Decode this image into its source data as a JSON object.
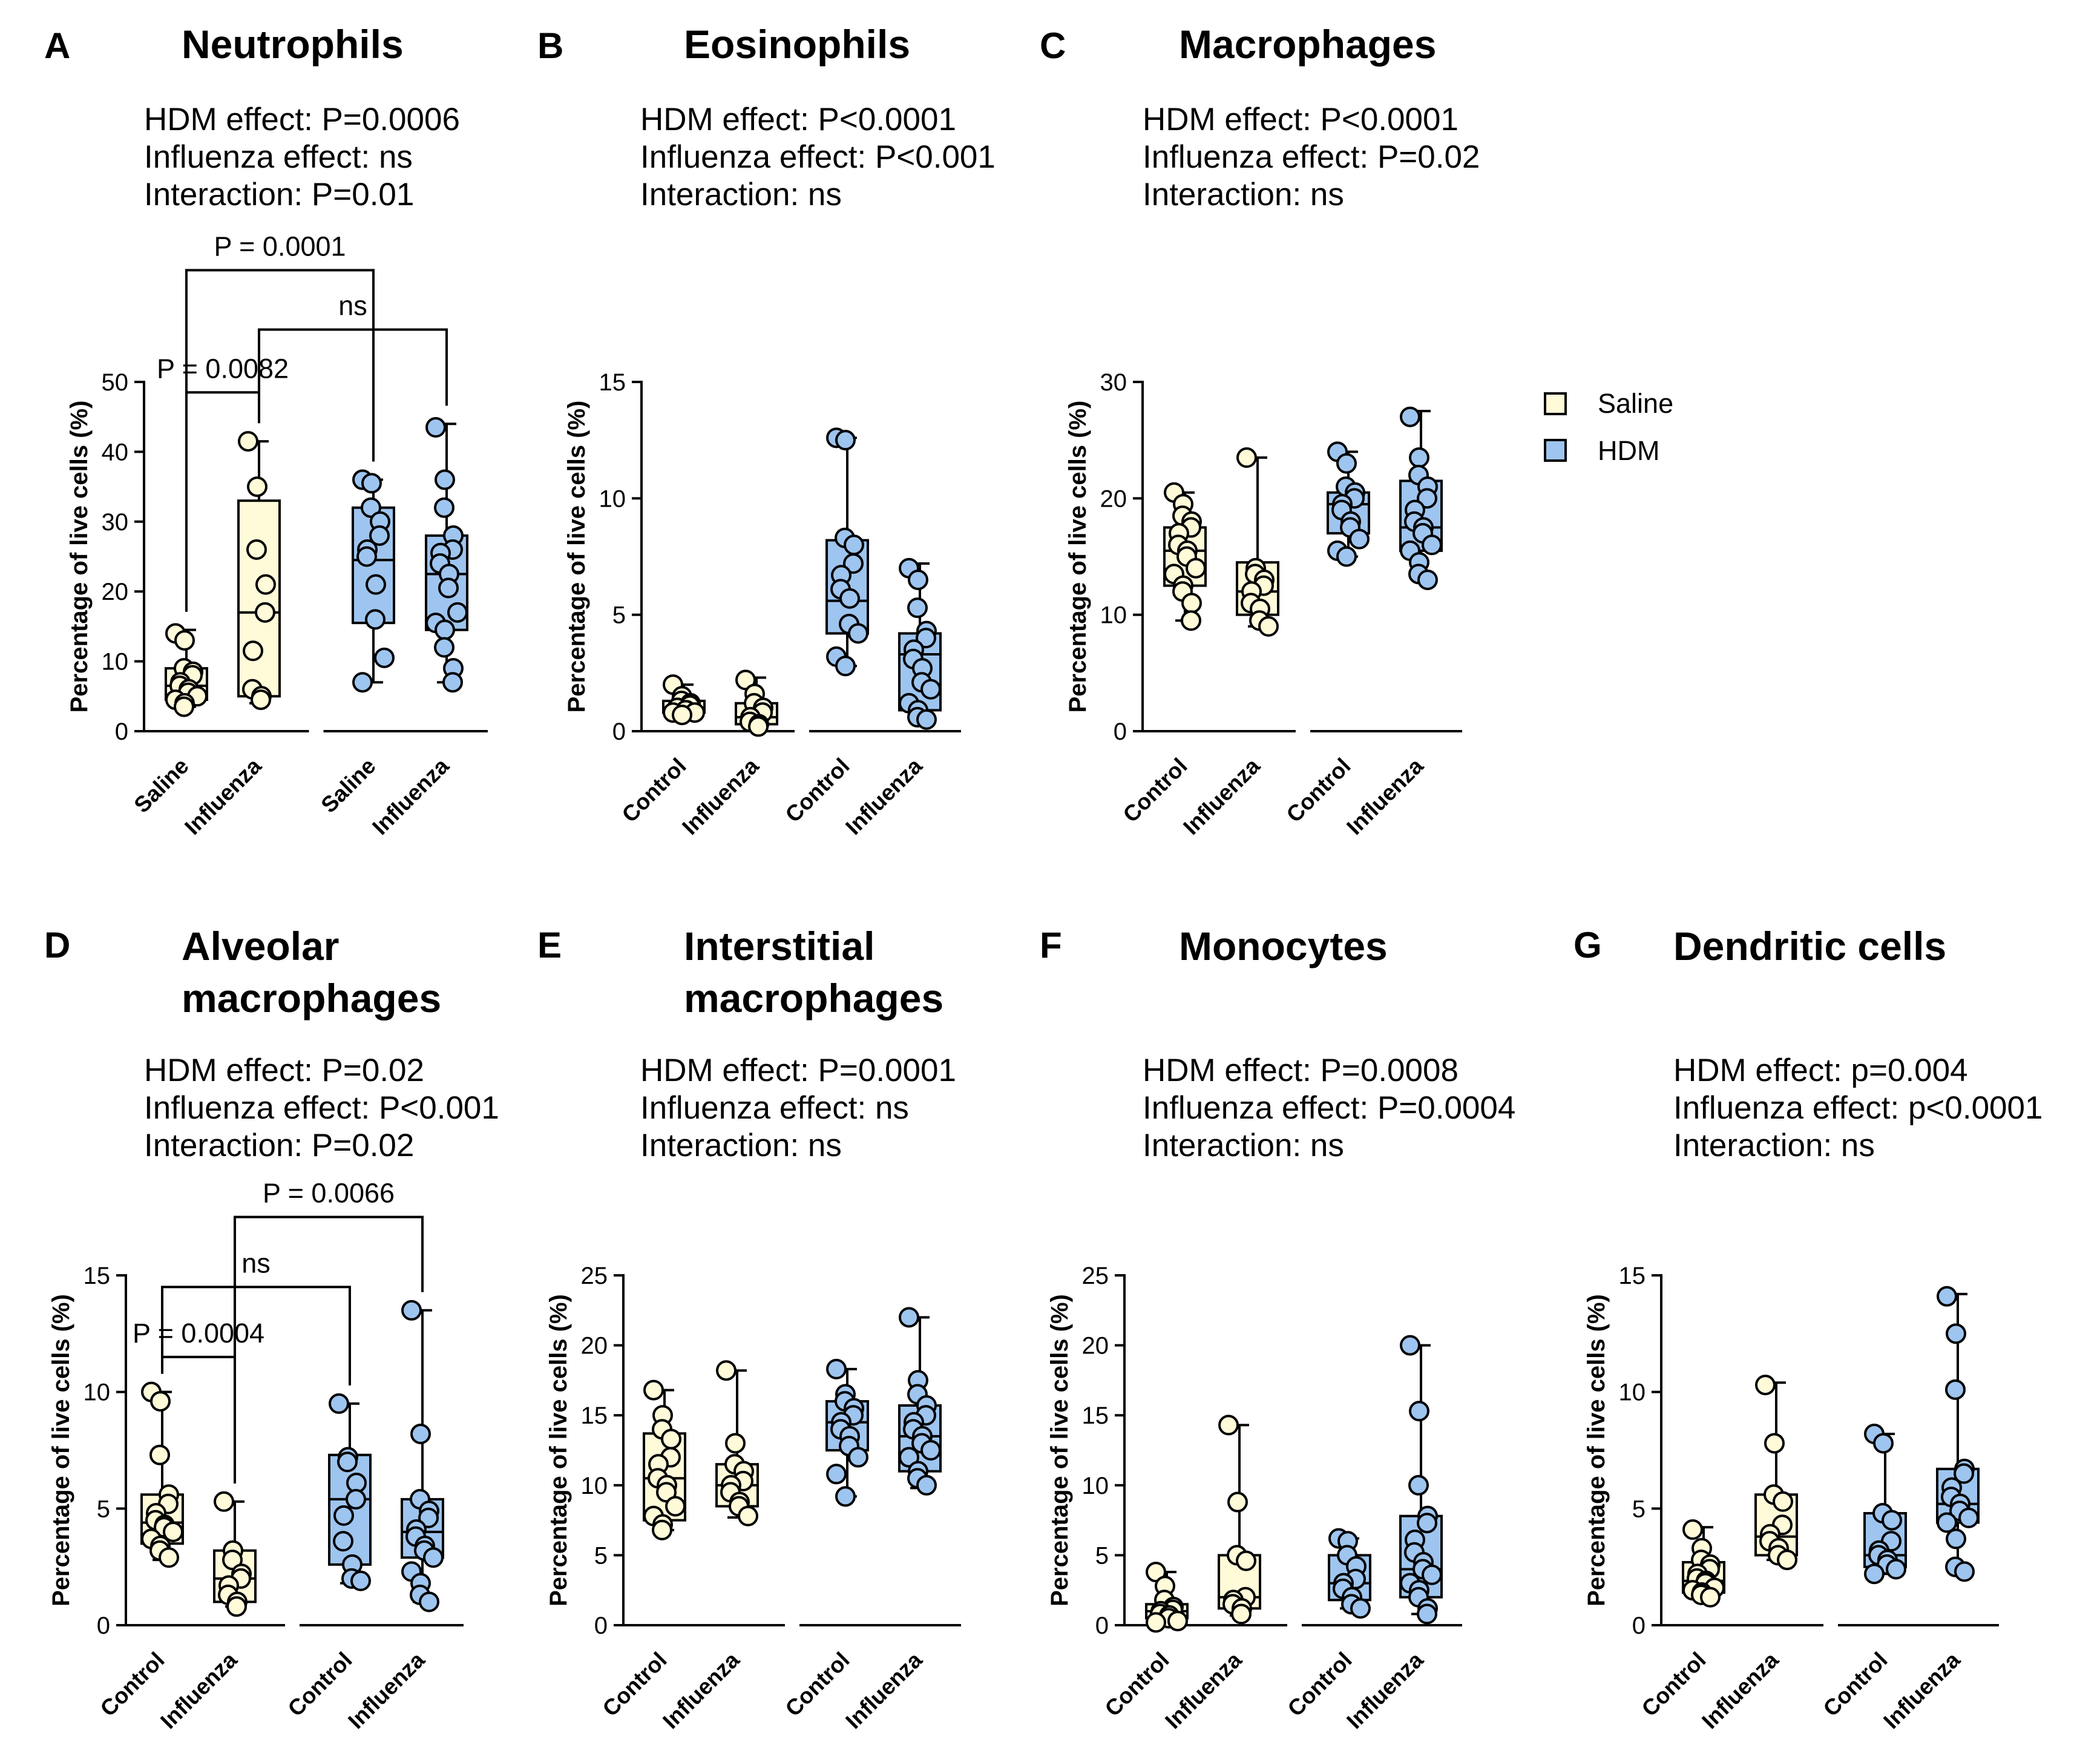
{
  "legend": {
    "items": [
      {
        "label": "Saline",
        "color": "#fffbd9"
      },
      {
        "label": "HDM",
        "color": "#9ec5ef"
      }
    ]
  },
  "colors": {
    "saline": "#fffbd9",
    "hdm": "#9ec5ef",
    "axis": "#000000"
  },
  "chart_data": [
    {
      "id": "A",
      "letter": "A",
      "type": "box",
      "title": [
        "Neutrophils"
      ],
      "stats": [
        "HDM effect: P=0.0006",
        "Influenza effect: ns",
        "Interaction: P=0.01"
      ],
      "ylabel": "Percentage of live cells (%)",
      "ylim": [
        0,
        50
      ],
      "yticks": [
        0,
        10,
        20,
        30,
        40,
        50
      ],
      "groups": [
        {
          "label": "Saline",
          "treatment": "Saline",
          "min": 3.5,
          "q1": 4.5,
          "median": 6.5,
          "q3": 9,
          "max": 14.5,
          "points": [
            14,
            13,
            9,
            8.5,
            8,
            7,
            6.5,
            6,
            5.5,
            5,
            4.5,
            4,
            3.5
          ]
        },
        {
          "label": "Influenza",
          "treatment": "Saline",
          "min": 4,
          "q1": 5,
          "median": 17,
          "q3": 33,
          "max": 41.5,
          "points": [
            41.5,
            35,
            26,
            21,
            17,
            11.5,
            6,
            5,
            4.5
          ]
        },
        {
          "label": "Saline",
          "treatment": "HDM",
          "min": 7,
          "q1": 15.5,
          "median": 24.5,
          "q3": 32,
          "max": 36,
          "points": [
            36,
            35.5,
            32,
            30,
            28,
            26,
            25,
            21,
            16,
            10.5,
            7
          ]
        },
        {
          "label": "Influenza",
          "treatment": "HDM",
          "min": 7,
          "q1": 14.5,
          "median": 22.5,
          "q3": 28,
          "max": 44,
          "points": [
            43.5,
            36,
            32,
            28,
            26,
            25.5,
            24,
            22.5,
            20.5,
            17,
            15.5,
            14.5,
            12,
            9,
            7
          ]
        }
      ],
      "comparisons": [
        {
          "from": 0,
          "to": 1,
          "label": "P = 0.0082",
          "y": 48.5
        },
        {
          "from": 1,
          "to": 3,
          "label": "ns",
          "y": 57.5
        },
        {
          "from": 0,
          "to": 2,
          "label": "P = 0.0001",
          "y": 66
        }
      ]
    },
    {
      "id": "B",
      "letter": "B",
      "type": "box",
      "title": [
        "Eosinophils"
      ],
      "stats": [
        "HDM effect: P<0.0001",
        "Influenza effect: P<0.001",
        "Interaction: ns"
      ],
      "ylabel": "Percentage of live cells (%)",
      "ylim": [
        0,
        15
      ],
      "yticks": [
        0,
        5,
        10,
        15
      ],
      "groups": [
        {
          "label": "Control",
          "treatment": "Saline",
          "min": 0.7,
          "q1": 0.8,
          "median": 1.0,
          "q3": 1.3,
          "max": 2.0,
          "points": [
            2.0,
            1.5,
            1.3,
            1.2,
            1.1,
            1.0,
            1.0,
            0.9,
            0.9,
            0.8,
            0.8,
            0.7
          ]
        },
        {
          "label": "Influenza",
          "treatment": "Saline",
          "min": 0.2,
          "q1": 0.3,
          "median": 0.6,
          "q3": 1.2,
          "max": 2.3,
          "points": [
            2.2,
            1.6,
            1.2,
            1.0,
            0.8,
            0.6,
            0.4,
            0.3,
            0.2
          ]
        },
        {
          "label": "Control",
          "treatment": "HDM",
          "min": 2.8,
          "q1": 4.2,
          "median": 5.6,
          "q3": 8.2,
          "max": 12.6,
          "points": [
            12.6,
            12.5,
            8.3,
            8.0,
            7.2,
            6.7,
            6.1,
            5.7,
            4.6,
            4.2,
            3.2,
            2.8
          ]
        },
        {
          "label": "Influenza",
          "treatment": "HDM",
          "min": 0.5,
          "q1": 0.9,
          "median": 3.3,
          "q3": 4.2,
          "max": 7.2,
          "points": [
            7.0,
            6.5,
            5.3,
            4.3,
            4.0,
            3.5,
            3.1,
            2.7,
            2.1,
            1.8,
            1.2,
            0.9,
            0.6,
            0.5
          ]
        }
      ],
      "comparisons": []
    },
    {
      "id": "C",
      "letter": "C",
      "type": "box",
      "title": [
        "Macrophages"
      ],
      "stats": [
        "HDM effect: P<0.0001",
        "Influenza effect: P=0.02",
        "Interaction: ns"
      ],
      "ylabel": "Percentage of live cells (%)",
      "ylim": [
        0,
        30
      ],
      "yticks": [
        0,
        10,
        20,
        30
      ],
      "groups": [
        {
          "label": "Control",
          "treatment": "Saline",
          "min": 9.5,
          "q1": 12.5,
          "median": 15.5,
          "q3": 17.5,
          "max": 20.5,
          "points": [
            20.5,
            19.5,
            18.5,
            18,
            17.5,
            17,
            16,
            15.5,
            15,
            14,
            13.5,
            12.5,
            12,
            11,
            9.5
          ]
        },
        {
          "label": "Influenza",
          "treatment": "Saline",
          "min": 9,
          "q1": 10,
          "median": 12,
          "q3": 14.5,
          "max": 23.5,
          "points": [
            23.5,
            14,
            13.5,
            13,
            12.5,
            12,
            11,
            10.5,
            9.5,
            9
          ]
        },
        {
          "label": "Control",
          "treatment": "HDM",
          "min": 15,
          "q1": 17,
          "median": 19.5,
          "q3": 20.5,
          "max": 24,
          "points": [
            24,
            23,
            21,
            20.5,
            20,
            19.5,
            19,
            18,
            17.5,
            16.5,
            15.5,
            15
          ]
        },
        {
          "label": "Influenza",
          "treatment": "HDM",
          "min": 13,
          "q1": 15.5,
          "median": 17.5,
          "q3": 21.5,
          "max": 27.5,
          "points": [
            27,
            23.5,
            22,
            21,
            20,
            19,
            18,
            17.5,
            17,
            16,
            15.5,
            14.5,
            13.5,
            13
          ]
        }
      ],
      "comparisons": []
    },
    {
      "id": "D",
      "letter": "D",
      "type": "box",
      "title": [
        "Alveolar",
        "macrophages"
      ],
      "stats": [
        "HDM effect: P=0.02",
        "Influenza effect: P<0.001",
        "Interaction: P=0.02"
      ],
      "ylabel": "Percentage of live cells (%)",
      "ylim": [
        0,
        15
      ],
      "yticks": [
        0,
        5,
        10,
        15
      ],
      "groups": [
        {
          "label": "Control",
          "treatment": "Saline",
          "min": 2.8,
          "q1": 3.5,
          "median": 4.4,
          "q3": 5.6,
          "max": 10,
          "points": [
            10,
            9.6,
            7.3,
            5.6,
            5.2,
            4.8,
            4.5,
            4.3,
            4.2,
            4.0,
            3.7,
            3.4,
            3.2,
            2.9
          ]
        },
        {
          "label": "Influenza",
          "treatment": "Saline",
          "min": 0.8,
          "q1": 1.0,
          "median": 2.0,
          "q3": 3.2,
          "max": 5.3,
          "points": [
            5.3,
            3.2,
            2.8,
            2.2,
            2.0,
            1.7,
            1.3,
            1.0,
            0.8
          ]
        },
        {
          "label": "Control",
          "treatment": "HDM",
          "min": 1.8,
          "q1": 2.6,
          "median": 5.4,
          "q3": 7.3,
          "max": 9.5,
          "points": [
            9.5,
            7.2,
            7.0,
            6.1,
            5.4,
            4.7,
            3.6,
            2.6,
            2.0,
            1.9
          ]
        },
        {
          "label": "Influenza",
          "treatment": "HDM",
          "min": 1.0,
          "q1": 2.9,
          "median": 4.0,
          "q3": 5.4,
          "max": 13.5,
          "points": [
            13.5,
            8.2,
            5.4,
            4.9,
            4.6,
            4.1,
            3.8,
            3.4,
            3.2,
            2.9,
            2.3,
            1.8,
            1.3,
            1.0
          ]
        }
      ],
      "comparisons": [
        {
          "from": 0,
          "to": 1,
          "label": "P = 0.0004",
          "y": 11.5
        },
        {
          "from": 0,
          "to": 2,
          "label": "ns",
          "y": 14.5
        },
        {
          "from": 1,
          "to": 3,
          "label": "P = 0.0066",
          "y": 17.5
        }
      ]
    },
    {
      "id": "E",
      "letter": "E",
      "type": "box",
      "title": [
        "Interstitial",
        "macrophages"
      ],
      "stats": [
        "HDM effect: P=0.0001",
        "Influenza effect: ns",
        "Interaction: ns"
      ],
      "ylabel": "Percentage of live cells (%)",
      "ylim": [
        0,
        25
      ],
      "yticks": [
        0,
        5,
        10,
        15,
        20,
        25
      ],
      "groups": [
        {
          "label": "Control",
          "treatment": "Saline",
          "min": 6.8,
          "q1": 7.5,
          "median": 10.5,
          "q3": 13.7,
          "max": 16.8,
          "points": [
            16.8,
            15,
            14,
            13.3,
            12,
            11.5,
            10.5,
            10,
            9.5,
            8.5,
            7.8,
            7.2,
            6.8
          ]
        },
        {
          "label": "Influenza",
          "treatment": "Saline",
          "min": 7.7,
          "q1": 8.5,
          "median": 10,
          "q3": 11.5,
          "max": 18.2,
          "points": [
            18.2,
            13,
            11.5,
            11,
            10.3,
            10,
            9.5,
            8.8,
            8.5,
            7.8
          ]
        },
        {
          "label": "Control",
          "treatment": "HDM",
          "min": 9.2,
          "q1": 12.5,
          "median": 14.5,
          "q3": 16,
          "max": 18.3,
          "points": [
            18.3,
            16.5,
            16,
            15.5,
            15,
            14.5,
            14,
            13.5,
            12.8,
            12,
            10.8,
            9.2
          ]
        },
        {
          "label": "Influenza",
          "treatment": "HDM",
          "min": 9.8,
          "q1": 11,
          "median": 13.5,
          "q3": 15.7,
          "max": 22,
          "points": [
            22,
            17.5,
            16.5,
            15.7,
            15,
            14.5,
            14,
            13.5,
            13,
            12.5,
            12,
            11,
            10.5,
            10
          ]
        }
      ],
      "comparisons": []
    },
    {
      "id": "F",
      "letter": "F",
      "type": "box",
      "title": [
        "Monocytes"
      ],
      "stats": [
        "HDM effect: P=0.0008",
        "Influenza effect: P=0.0004",
        "Interaction: ns"
      ],
      "ylabel": "Percentage of live cells (%)",
      "ylim": [
        0,
        25
      ],
      "yticks": [
        0,
        5,
        10,
        15,
        20,
        25
      ],
      "groups": [
        {
          "label": "Control",
          "treatment": "Saline",
          "min": 0.2,
          "q1": 0.5,
          "median": 1.0,
          "q3": 1.5,
          "max": 3.8,
          "points": [
            3.8,
            2.8,
            1.8,
            1.3,
            1.1,
            1.0,
            0.8,
            0.7,
            0.5,
            0.3,
            0.2
          ]
        },
        {
          "label": "Influenza",
          "treatment": "Saline",
          "min": 0.7,
          "q1": 1.2,
          "median": 2.0,
          "q3": 5.0,
          "max": 14.3,
          "points": [
            14.3,
            8.8,
            5.0,
            4.6,
            2.0,
            1.8,
            1.5,
            1.2,
            0.8
          ]
        },
        {
          "label": "Control",
          "treatment": "HDM",
          "min": 1.2,
          "q1": 1.8,
          "median": 3.0,
          "q3": 5.0,
          "max": 6.2,
          "points": [
            6.2,
            6.0,
            5.0,
            4.2,
            3.3,
            3.0,
            2.6,
            2.0,
            1.5,
            1.2
          ]
        },
        {
          "label": "Influenza",
          "treatment": "HDM",
          "min": 0.8,
          "q1": 2.0,
          "median": 4.0,
          "q3": 7.8,
          "max": 20,
          "points": [
            20,
            15.3,
            10,
            7.8,
            7.3,
            6.1,
            5.2,
            4.5,
            4.0,
            3.6,
            3.0,
            2.5,
            2.0,
            1.2,
            0.8
          ]
        }
      ],
      "comparisons": []
    },
    {
      "id": "G",
      "letter": "G",
      "type": "box",
      "title": [
        "Dendritic cells"
      ],
      "stats": [
        "HDM effect: p=0.004",
        "Influenza effect: p<0.0001",
        "Interaction: ns"
      ],
      "ylabel": "Percentage of live cells (%)",
      "ylim": [
        0,
        15
      ],
      "yticks": [
        0,
        5,
        10,
        15
      ],
      "groups": [
        {
          "label": "Control",
          "treatment": "Saline",
          "min": 1.2,
          "q1": 1.4,
          "median": 1.9,
          "q3": 2.7,
          "max": 4.2,
          "points": [
            4.1,
            3.3,
            2.8,
            2.6,
            2.4,
            2.2,
            2.0,
            1.9,
            1.8,
            1.6,
            1.5,
            1.4,
            1.3,
            1.2
          ]
        },
        {
          "label": "Influenza",
          "treatment": "Saline",
          "min": 2.8,
          "q1": 3.0,
          "median": 3.8,
          "q3": 5.6,
          "max": 10.4,
          "points": [
            10.3,
            7.8,
            5.6,
            5.3,
            4.3,
            3.9,
            3.6,
            3.3,
            3.0,
            2.8
          ]
        },
        {
          "label": "Control",
          "treatment": "HDM",
          "min": 2.2,
          "q1": 2.5,
          "median": 3.0,
          "q3": 4.8,
          "max": 8.2,
          "points": [
            8.2,
            7.8,
            4.8,
            4.5,
            3.6,
            3.2,
            3.0,
            2.8,
            2.6,
            2.4,
            2.2
          ]
        },
        {
          "label": "Influenza",
          "treatment": "HDM",
          "min": 2.3,
          "q1": 4.4,
          "median": 5.2,
          "q3": 6.7,
          "max": 14.2,
          "points": [
            14.1,
            12.5,
            10.1,
            6.7,
            6.5,
            5.9,
            5.5,
            5.2,
            4.9,
            4.6,
            4.4,
            3.7,
            2.5,
            2.3
          ]
        }
      ],
      "comparisons": []
    }
  ]
}
